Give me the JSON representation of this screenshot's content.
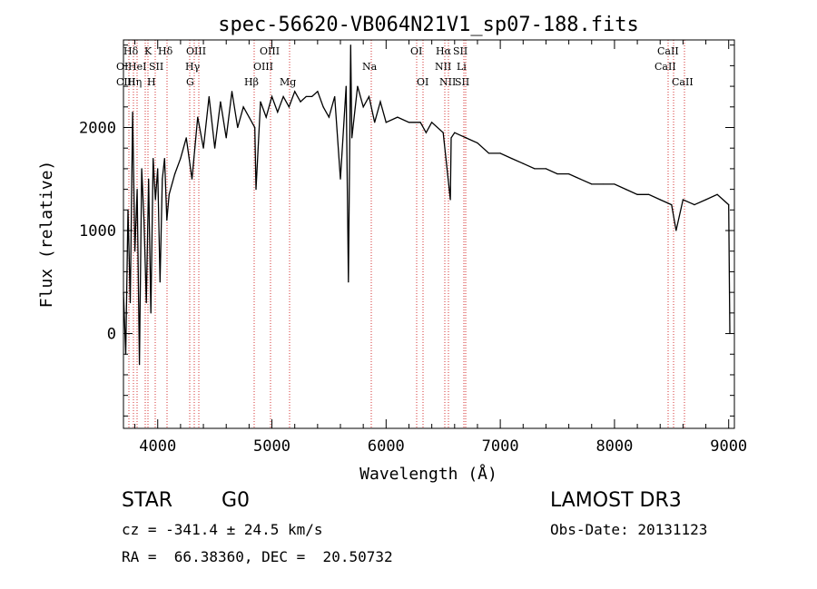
{
  "chart_data": {
    "type": "line",
    "title": "spec-56620-VB064N21V1_sp07-188.fits",
    "xlabel": "Wavelength (Å)",
    "ylabel": "Flux (relative)",
    "xlim": [
      3700,
      9050
    ],
    "ylim": [
      -920,
      2850
    ],
    "xticks": [
      4000,
      5000,
      6000,
      7000,
      8000,
      9000
    ],
    "yticks": [
      0,
      1000,
      2000
    ],
    "x": [
      3700,
      3720,
      3740,
      3760,
      3780,
      3800,
      3820,
      3840,
      3860,
      3880,
      3900,
      3920,
      3940,
      3960,
      3980,
      4000,
      4020,
      4040,
      4060,
      4080,
      4100,
      4150,
      4200,
      4250,
      4300,
      4350,
      4400,
      4450,
      4500,
      4550,
      4600,
      4650,
      4700,
      4750,
      4800,
      4850,
      4861,
      4900,
      4950,
      5000,
      5050,
      5100,
      5150,
      5200,
      5250,
      5300,
      5350,
      5400,
      5450,
      5500,
      5550,
      5600,
      5650,
      5670,
      5690,
      5700,
      5750,
      5800,
      5850,
      5900,
      5950,
      6000,
      6100,
      6200,
      6300,
      6350,
      6400,
      6500,
      6563,
      6570,
      6600,
      6700,
      6800,
      6900,
      7000,
      7100,
      7200,
      7300,
      7400,
      7500,
      7600,
      7700,
      7800,
      7900,
      8000,
      8100,
      8200,
      8300,
      8400,
      8500,
      8540,
      8600,
      8700,
      8800,
      8900,
      9000,
      9010
    ],
    "y": [
      400,
      -200,
      1200,
      300,
      2150,
      800,
      1400,
      -300,
      1600,
      1100,
      300,
      1500,
      200,
      1700,
      1300,
      1600,
      500,
      1500,
      1700,
      1100,
      1350,
      1550,
      1700,
      1900,
      1500,
      2100,
      1800,
      2300,
      1800,
      2250,
      1900,
      2350,
      2000,
      2200,
      2100,
      2000,
      1400,
      2250,
      2100,
      2300,
      2150,
      2300,
      2200,
      2350,
      2250,
      2300,
      2300,
      2350,
      2200,
      2100,
      2300,
      1500,
      2400,
      500,
      2800,
      1900,
      2400,
      2200,
      2300,
      2050,
      2250,
      2050,
      2100,
      2050,
      2050,
      1950,
      2050,
      1950,
      1300,
      1900,
      1950,
      1900,
      1850,
      1750,
      1750,
      1700,
      1650,
      1600,
      1600,
      1550,
      1550,
      1500,
      1450,
      1450,
      1450,
      1400,
      1350,
      1350,
      1300,
      1250,
      1000,
      1300,
      1250,
      1300,
      1350,
      1250,
      0
    ],
    "lines_top_row": [
      "Hδ",
      "K",
      "Hδ",
      "OIII",
      "OIII",
      "OI",
      "Hα",
      "SII",
      "CaII"
    ],
    "lines_row2": [
      "OI",
      "HeI",
      "SII",
      "Hγ",
      "OIII",
      "Na",
      "NII",
      "Li",
      "CaII"
    ],
    "lines_row3": [
      "CIII",
      "Hη",
      "H",
      "G",
      "Hβ",
      "Mg",
      "OI",
      "NII",
      "SII",
      "CaII"
    ]
  },
  "info": {
    "object_class": "STAR",
    "subclass": "G0",
    "survey": "LAMOST DR3",
    "redshift": "cz = -341.4 ± 24.5 km/s",
    "obs_date": "Obs-Date: 20131123",
    "coords": "RA =  66.38360, DEC =  20.50732"
  },
  "colors": {
    "axis": "#000000",
    "spectrum": "#000000",
    "line_marker": "#cc0000"
  }
}
